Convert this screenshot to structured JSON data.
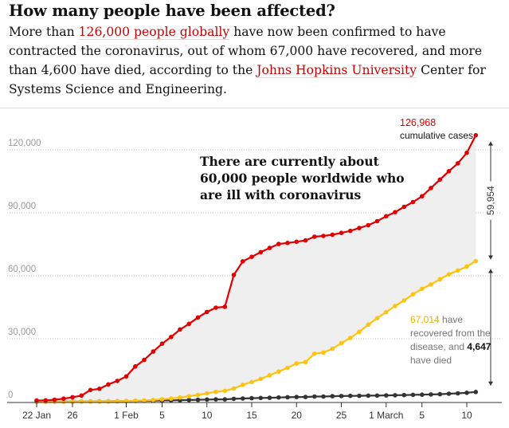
{
  "header": {
    "title": "How many people have been affected?",
    "intro_part1": "More than ",
    "intro_link1": "126,000 people globally",
    "intro_part2": " have now been confirmed to have contracted the coronavirus, out of whom 67,000 have recovered, and more than 4,600 have died, according to the ",
    "intro_link2": "Johns Hopkins University",
    "intro_part3": " Center for Systems Science and Engineering."
  },
  "colors": {
    "cases": "#e00000",
    "recovered": "#ffc20e",
    "deaths": "#333333",
    "fill": "#efefef",
    "grid": "#bdbdbd",
    "link": "#c70000",
    "axis_text": "#999999"
  },
  "chart_data": {
    "type": "line",
    "title": "",
    "xlabel": "",
    "ylabel": "",
    "ylim": [
      0,
      130000
    ],
    "grid": true,
    "start_date": "2020-01-22",
    "y_ticks": [
      0,
      30000,
      60000,
      90000,
      120000
    ],
    "y_tick_labels": [
      "0",
      "30,000",
      "60,000",
      "90,000",
      "120,000"
    ],
    "x_ticks": [
      {
        "date": "2020-01-22",
        "label": "22 Jan"
      },
      {
        "date": "2020-01-26",
        "label": "26"
      },
      {
        "date": "2020-02-01",
        "label": "1 Feb"
      },
      {
        "date": "2020-02-05",
        "label": "5"
      },
      {
        "date": "2020-02-10",
        "label": "10"
      },
      {
        "date": "2020-02-15",
        "label": "15"
      },
      {
        "date": "2020-02-20",
        "label": "20"
      },
      {
        "date": "2020-02-25",
        "label": "25"
      },
      {
        "date": "2020-03-01",
        "label": "1 March"
      },
      {
        "date": "2020-03-05",
        "label": "5"
      },
      {
        "date": "2020-03-10",
        "label": "10"
      }
    ],
    "series": [
      {
        "key": "cases",
        "values": [
          555,
          654,
          941,
          1434,
          2118,
          2927,
          5578,
          6166,
          8234,
          9927,
          12038,
          16787,
          19881,
          23892,
          27635,
          30817,
          34391,
          37120,
          40150,
          42762,
          44802,
          45221,
          60368,
          66885,
          69032,
          71226,
          73260,
          75138,
          75641,
          76199,
          76843,
          78599,
          78985,
          79570,
          80415,
          81397,
          82756,
          84124,
          86013,
          88371,
          90309,
          92844,
          95124,
          97886,
          101800,
          105836,
          109835,
          113582,
          118582,
          126968
        ]
      },
      {
        "key": "recovered",
        "values": [
          28,
          30,
          36,
          39,
          52,
          61,
          107,
          126,
          143,
          222,
          284,
          472,
          623,
          852,
          1124,
          1487,
          2011,
          2616,
          3244,
          3946,
          4683,
          5150,
          6295,
          8058,
          9395,
          10865,
          12583,
          14352,
          16121,
          18177,
          18890,
          22886,
          23394,
          25227,
          27905,
          30384,
          33277,
          36711,
          39782,
          42716,
          45602,
          48229,
          51171,
          53797,
          55866,
          58359,
          60694,
          62494,
          64404,
          67014
        ]
      },
      {
        "key": "deaths",
        "values": [
          17,
          18,
          26,
          42,
          56,
          82,
          131,
          133,
          171,
          213,
          259,
          362,
          426,
          492,
          564,
          634,
          719,
          806,
          906,
          1013,
          1113,
          1118,
          1371,
          1523,
          1666,
          1770,
          1868,
          2007,
          2122,
          2247,
          2251,
          2458,
          2469,
          2629,
          2708,
          2770,
          2814,
          2872,
          2941,
          2996,
          3085,
          3160,
          3254,
          3348,
          3460,
          3558,
          3802,
          3988,
          4262,
          4647
        ]
      }
    ],
    "annotations": {
      "cases_value": "126,968",
      "cases_label": "cumulative cases",
      "ill_note_line1": "There are currently about",
      "ill_note_line2": "60,000 people worldwide who",
      "ill_note_line3": "are ill with coronavirus",
      "gap_value": "59,954",
      "recovered_value": "67,014",
      "recovered_label1": " have",
      "recovered_label2": "recovered from the",
      "recovered_label3": "disease, and ",
      "deaths_value": "4,647",
      "deaths_label": "have died"
    }
  }
}
